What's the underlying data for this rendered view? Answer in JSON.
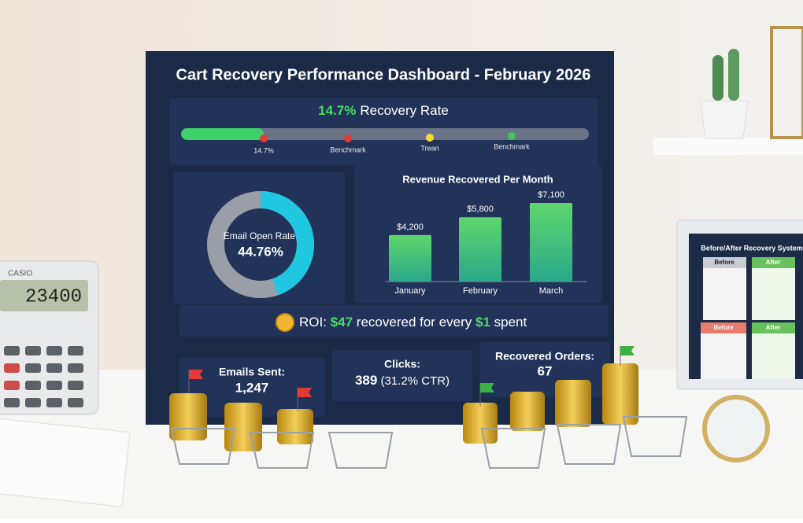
{
  "dashboard": {
    "title": "Cart Recovery Performance Dashboard - February 2026",
    "recovery": {
      "rate": "14.7%",
      "label": "Recovery Rate",
      "markers": [
        "14.7%",
        "Benchmark",
        "Trean",
        "Benchmark"
      ]
    },
    "donut": {
      "label": "Email Open Rate:",
      "value_label": "44.76%",
      "value": 44.76
    },
    "revenue_chart": {
      "type": "bar",
      "title": "Revenue Recovered Per Month",
      "categories": [
        "January",
        "February",
        "March"
      ],
      "values": [
        4200,
        5800,
        7100
      ],
      "value_labels": [
        "$4,200",
        "$5,800",
        "$7,100"
      ],
      "color": "#3fc36a"
    },
    "roi": {
      "prefix": "ROI:",
      "amount": "$47",
      "middle": "recovered for every",
      "cost": "$1",
      "suffix": "spent"
    },
    "cards": [
      {
        "label": "Emails Sent:",
        "value": "1,247"
      },
      {
        "label": "Clicks:",
        "value": "389",
        "note": "(31.2% CTR)"
      },
      {
        "label": "Recovered Orders:",
        "value": "67"
      }
    ]
  },
  "side_panel": {
    "title": "Before/After Recovery System",
    "columns": [
      "Before",
      "After",
      "Before",
      "After"
    ]
  },
  "calculator": {
    "brand": "CASIO",
    "display": "23400"
  }
}
